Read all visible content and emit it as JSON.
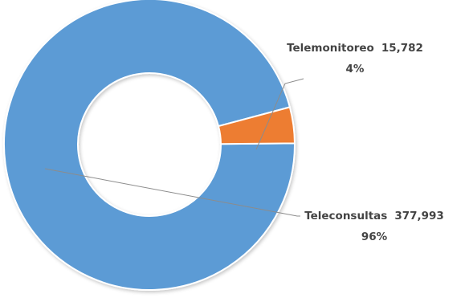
{
  "chart_data": {
    "type": "pie",
    "variant": "donut",
    "title": "",
    "slices": [
      {
        "name": "Teleconsultas",
        "value": 377993,
        "value_label": "377,993",
        "percent_label": "96%",
        "color": "#5b9bd5"
      },
      {
        "name": "Telemonitoreo",
        "value": 15782,
        "value_label": "15,782",
        "percent_label": "4%",
        "color": "#ed7d31"
      }
    ],
    "legend": "none",
    "data_labels": "outside with leader lines"
  }
}
